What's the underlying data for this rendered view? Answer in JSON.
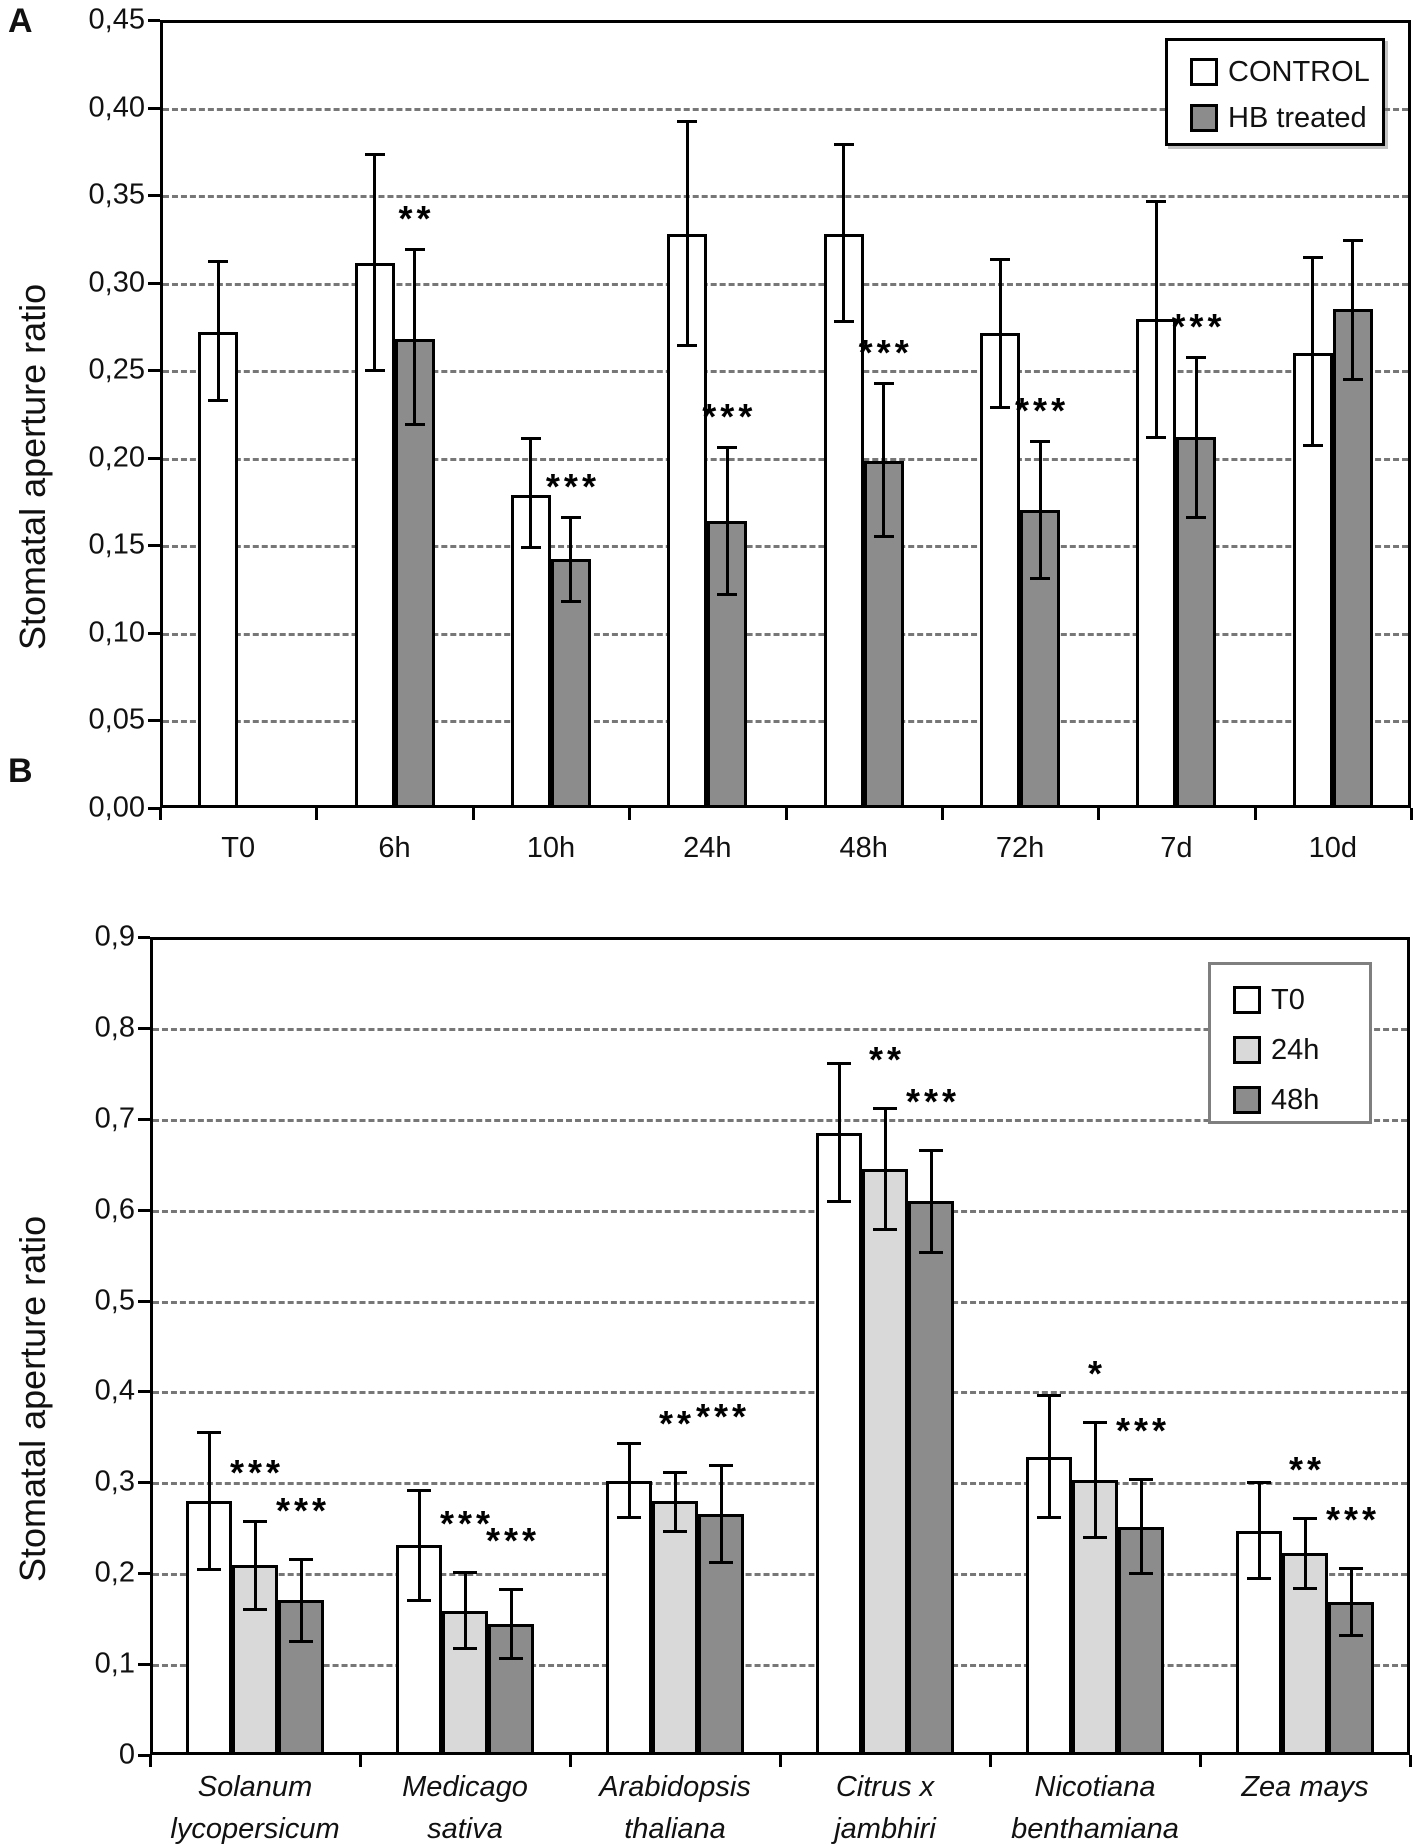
{
  "chart_data": [
    {
      "type": "bar",
      "panel_label": "A",
      "title": "",
      "xlabel": "",
      "ylabel": "Stomatal aperture ratio",
      "ylim": [
        0,
        0.45
      ],
      "y_step": 0.05,
      "y_tick_labels": [
        "0,45",
        "0,40",
        "0,35",
        "0,30",
        "0,25",
        "0,20",
        "0,15",
        "0,10",
        "0,05",
        "0,00"
      ],
      "grid": "horizontal-dashed",
      "legend_position": "top-right-inside",
      "categories": [
        "T0",
        "6h",
        "10h",
        "24h",
        "48h",
        "72h",
        "7d",
        "10d"
      ],
      "series": [
        {
          "name": "CONTROL",
          "fill": "#ffffff",
          "values": [
            0.272,
            0.311,
            0.179,
            0.328,
            0.328,
            0.271,
            0.279,
            0.26
          ],
          "err_low": [
            0.232,
            0.249,
            0.148,
            0.263,
            0.277,
            0.228,
            0.211,
            0.206
          ],
          "err_high": [
            0.313,
            0.374,
            0.212,
            0.393,
            0.38,
            0.314,
            0.347,
            0.315
          ],
          "stars": [
            null,
            null,
            null,
            null,
            null,
            null,
            null,
            null
          ]
        },
        {
          "name": "HB treated",
          "fill": "#8c8c8c",
          "values": [
            null,
            0.268,
            0.142,
            0.164,
            0.198,
            0.17,
            0.212,
            0.285
          ],
          "err_low": [
            null,
            0.218,
            0.117,
            0.121,
            0.154,
            0.13,
            0.165,
            0.244
          ],
          "err_high": [
            null,
            0.32,
            0.167,
            0.207,
            0.243,
            0.21,
            0.258,
            0.325
          ],
          "stars": [
            null,
            "**",
            "***",
            "***",
            "***",
            "***",
            "***",
            null
          ]
        }
      ]
    },
    {
      "type": "bar",
      "panel_label": "B",
      "title": "",
      "xlabel": "",
      "ylabel": "Stomatal aperture ratio",
      "ylim": [
        0,
        0.9
      ],
      "y_step": 0.1,
      "y_tick_labels": [
        "0,9",
        "0,8",
        "0,7",
        "0,6",
        "0,5",
        "0,4",
        "0,3",
        "0,2",
        "0,1",
        "0"
      ],
      "grid": "horizontal-dashed",
      "legend_position": "top-right-inside",
      "categories": [
        [
          "Solanum",
          "lycopersicum"
        ],
        [
          "Medicago",
          "sativa"
        ],
        [
          "Arabidopsis",
          "thaliana"
        ],
        [
          "Citrus x",
          "jambhiri"
        ],
        [
          "Nicotiana",
          "benthamiana"
        ],
        [
          "Zea mays"
        ]
      ],
      "series": [
        {
          "name": "T0",
          "fill": "#ffffff",
          "values": [
            0.279,
            0.231,
            0.302,
            0.684,
            0.328,
            0.247
          ],
          "err_low": [
            0.202,
            0.168,
            0.26,
            0.607,
            0.26,
            0.193
          ],
          "err_high": [
            0.356,
            0.293,
            0.344,
            0.762,
            0.397,
            0.302
          ],
          "stars": [
            null,
            null,
            null,
            null,
            null,
            null
          ]
        },
        {
          "name": "24h",
          "fill": "#d9d9d9",
          "values": [
            0.209,
            0.158,
            0.279,
            0.645,
            0.303,
            0.222
          ],
          "err_low": [
            0.158,
            0.116,
            0.244,
            0.576,
            0.238,
            0.182
          ],
          "err_high": [
            0.259,
            0.202,
            0.313,
            0.713,
            0.367,
            0.262
          ],
          "stars": [
            "***",
            "***",
            "**",
            "**",
            "*",
            "**"
          ]
        },
        {
          "name": "48h",
          "fill": "#8c8c8c",
          "values": [
            0.17,
            0.144,
            0.265,
            0.609,
            0.251,
            0.168
          ],
          "err_low": [
            0.123,
            0.104,
            0.21,
            0.551,
            0.198,
            0.13
          ],
          "err_high": [
            0.217,
            0.184,
            0.32,
            0.667,
            0.305,
            0.207
          ],
          "stars": [
            "***",
            "***",
            "***",
            "***",
            "***",
            "***"
          ]
        }
      ]
    }
  ]
}
